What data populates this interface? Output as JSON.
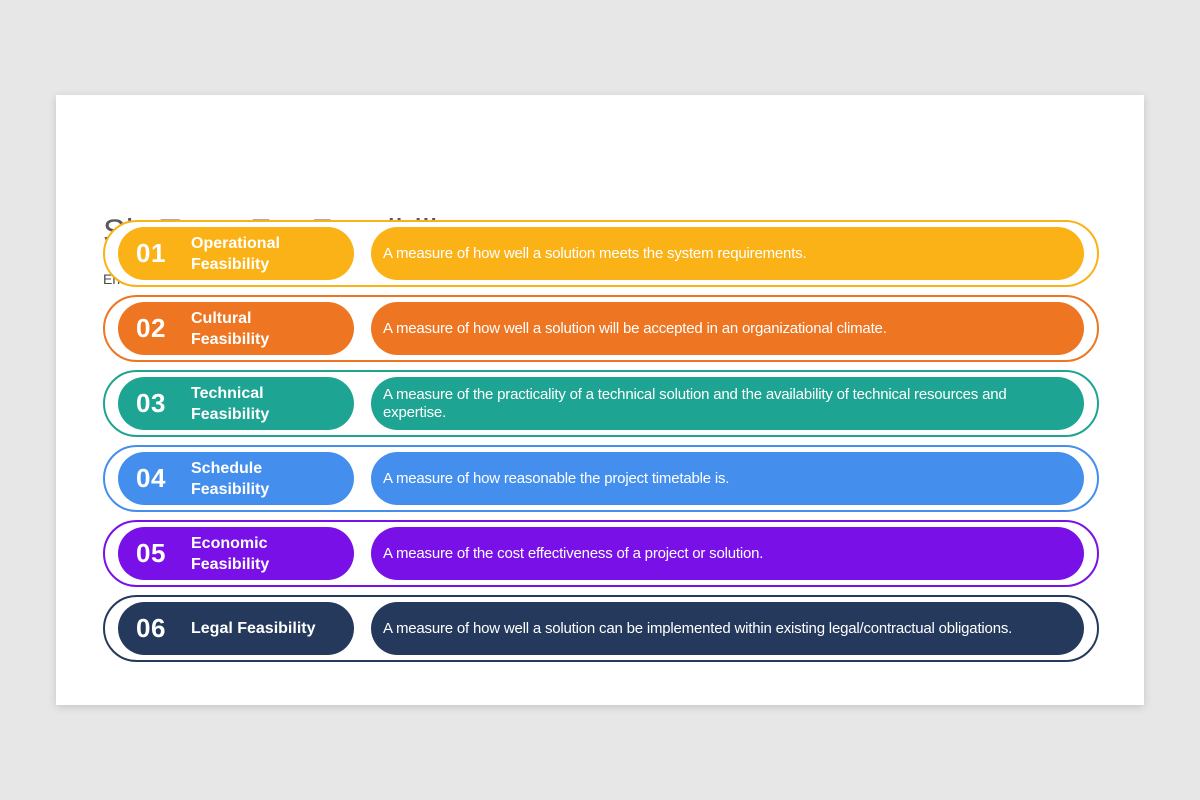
{
  "page": {
    "background_color": "#E7E7E7",
    "card_color": "#FFFFFF"
  },
  "header": {
    "title": "Six Tests For Feasibility",
    "subtitle": "Enter your sub headline here",
    "title_color": "#58595B"
  },
  "rows": [
    {
      "number": "01",
      "label": "Operational Feasibility",
      "description": "A measure of how well a solution meets the system requirements.",
      "color": "#FBB216"
    },
    {
      "number": "02",
      "label": "Cultural Feasibility",
      "description": "A measure of how well a solution will be accepted in an organizational climate.",
      "color": "#EE7623"
    },
    {
      "number": "03",
      "label": "Technical Feasibility",
      "description": "A measure of the practicality of a technical solution and the availability of technical resources and expertise.",
      "color": "#1EA493"
    },
    {
      "number": "04",
      "label": "Schedule Feasibility",
      "description": "A measure of how reasonable the project timetable is.",
      "color": "#448FEE"
    },
    {
      "number": "05",
      "label": "Economic Feasibility",
      "description": "A measure of the cost effectiveness of a project or solution.",
      "color": "#7A10E8"
    },
    {
      "number": "06",
      "label": "Legal Feasibility",
      "description": "A measure of how well a solution can be implemented within existing legal/contractual obligations.",
      "color": "#24395C"
    }
  ]
}
